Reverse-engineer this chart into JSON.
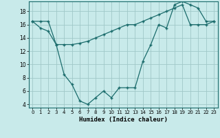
{
  "xlabel": "Humidex (Indice chaleur)",
  "background_color": "#c8eaea",
  "grid_color": "#a0c8c8",
  "line_color": "#1a6b6b",
  "xlim": [
    -0.5,
    23.5
  ],
  "ylim": [
    3.5,
    19.5
  ],
  "yticks": [
    4,
    6,
    8,
    10,
    12,
    14,
    16,
    18
  ],
  "xticks": [
    0,
    1,
    2,
    3,
    4,
    5,
    6,
    7,
    8,
    9,
    10,
    11,
    12,
    13,
    14,
    15,
    16,
    17,
    18,
    19,
    20,
    21,
    22,
    23
  ],
  "line1_x": [
    0,
    1,
    2,
    3,
    4,
    5,
    6,
    7,
    8,
    9,
    10,
    11,
    12,
    13,
    14,
    15,
    16,
    17,
    18,
    19,
    20,
    21,
    22,
    23
  ],
  "line1_y": [
    16.5,
    15.5,
    15.0,
    13.0,
    8.5,
    7.0,
    4.5,
    4.0,
    5.0,
    6.0,
    5.0,
    6.5,
    6.5,
    6.5,
    10.5,
    13.0,
    16.0,
    15.5,
    19.0,
    19.5,
    19.0,
    18.5,
    16.5,
    16.5
  ],
  "line2_x": [
    0,
    1,
    2,
    3,
    4,
    5,
    6,
    7,
    8,
    9,
    10,
    11,
    12,
    13,
    14,
    15,
    16,
    17,
    18,
    19,
    20,
    21,
    22,
    23
  ],
  "line2_y": [
    16.5,
    16.5,
    16.5,
    13.0,
    13.0,
    13.0,
    13.2,
    13.5,
    14.0,
    14.5,
    15.0,
    15.5,
    16.0,
    16.0,
    16.5,
    17.0,
    17.5,
    18.0,
    18.5,
    19.0,
    16.0,
    16.0,
    16.0,
    16.5
  ]
}
